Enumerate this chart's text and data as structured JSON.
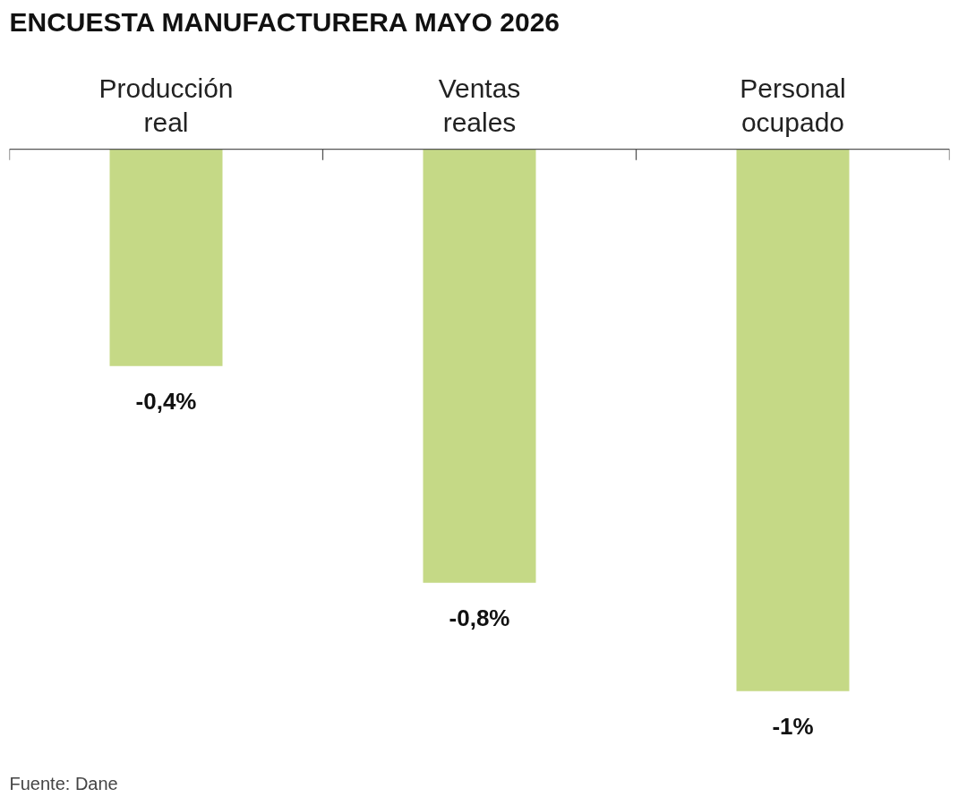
{
  "chart_data": {
    "type": "bar",
    "title": "ENCUESTA MANUFACTURERA MAYO 2026",
    "categories": [
      "Producción real",
      "Ventas reales",
      "Personal ocupado"
    ],
    "values": [
      -0.4,
      -0.8,
      -1
    ],
    "color": "#c5d986",
    "value_labels": [
      "-0,4%",
      "-0,8%",
      "-1%"
    ],
    "annotations": [
      "Fuente: Dane"
    ],
    "grid": false
  }
}
